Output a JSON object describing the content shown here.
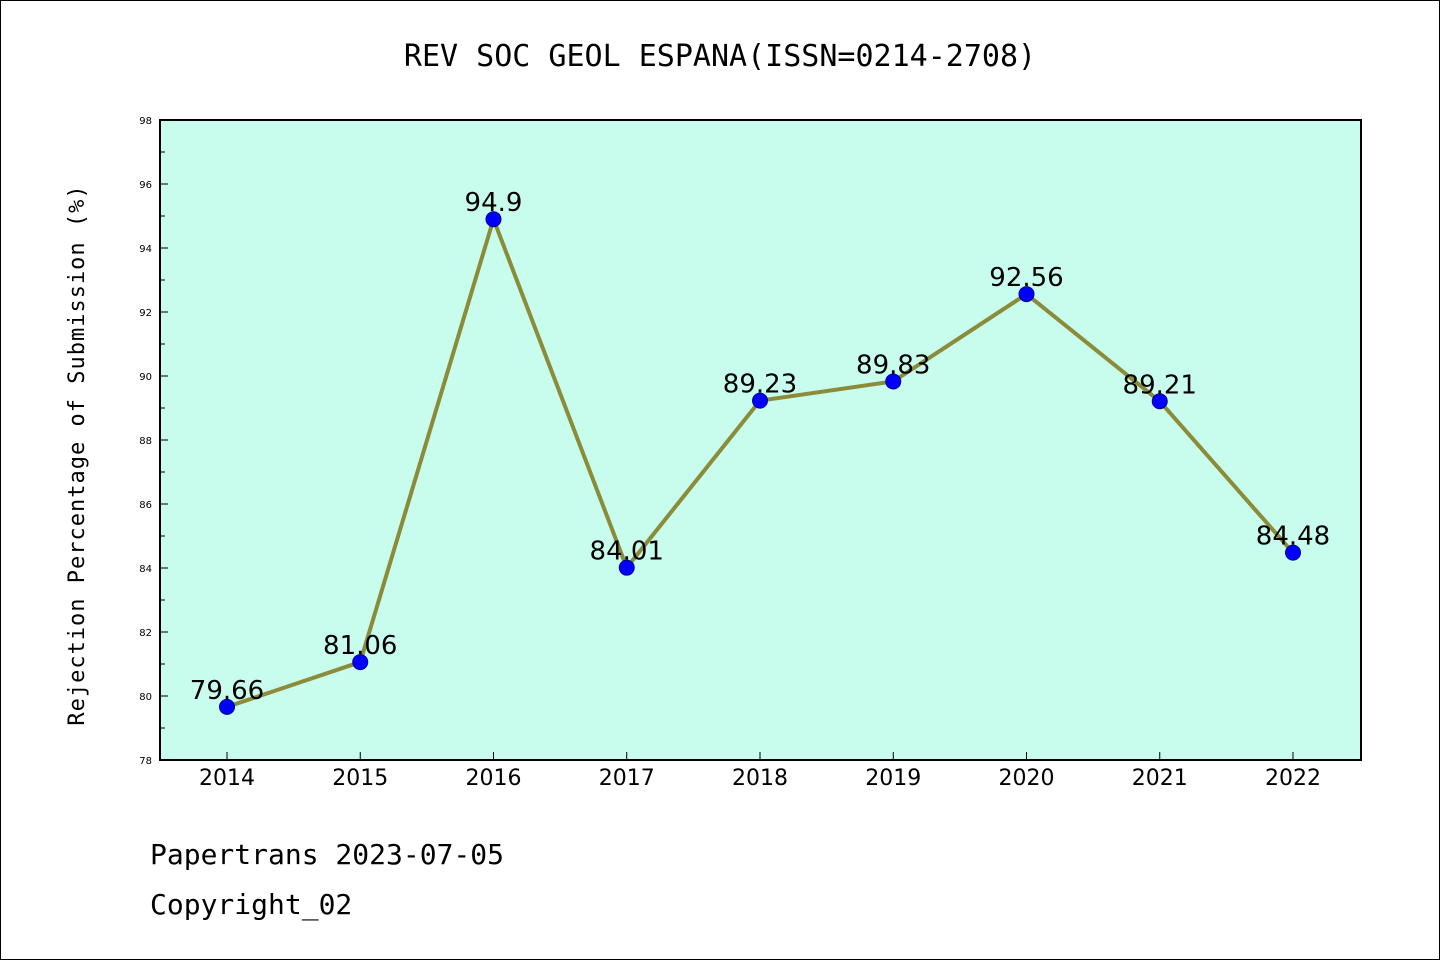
{
  "chart_data": {
    "type": "line",
    "title": "REV SOC GEOL ESPANA(ISSN=0214-2708)",
    "xlabel": "",
    "ylabel": "Rejection Percentage of Submission (%)",
    "categories": [
      "2014",
      "2015",
      "2016",
      "2017",
      "2018",
      "2019",
      "2020",
      "2021",
      "2022"
    ],
    "series": [
      {
        "values": [
          79.66,
          81.06,
          94.9,
          84.01,
          89.23,
          89.83,
          92.56,
          89.21,
          84.48
        ],
        "labels": [
          "79.66",
          "81.06",
          "94.9",
          "84.01",
          "89.23",
          "89.83",
          "92.56",
          "89.21",
          "84.48"
        ]
      }
    ],
    "ylim": [
      78,
      98
    ],
    "yticks": [
      "78",
      "80",
      "82",
      "84",
      "86",
      "88",
      "90",
      "92",
      "94",
      "96",
      "98"
    ],
    "grid": false,
    "colors": {
      "plot_background": "#c8fcec",
      "line": "#8b8b3a",
      "marker": "#0000ff"
    }
  },
  "footer": {
    "line1": "Papertrans 2023-07-05",
    "line2": "Copyright_02"
  }
}
